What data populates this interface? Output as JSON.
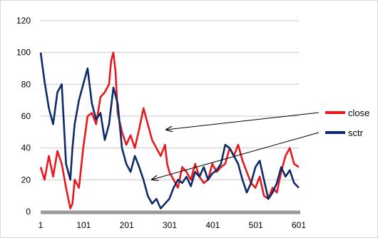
{
  "chart_data": {
    "type": "line",
    "title": "",
    "xlabel": "",
    "ylabel": "",
    "x_ticks": [
      "1",
      "101",
      "201",
      "301",
      "401",
      "501",
      "601"
    ],
    "y_ticks": [
      "0",
      "20",
      "40",
      "60",
      "80",
      "100",
      "120"
    ],
    "xlim": [
      1,
      601
    ],
    "ylim": [
      0,
      120
    ],
    "grid": "horizontal",
    "legend_position": "right",
    "colors": {
      "close": "#e8191e",
      "sctr": "#0f2a6b",
      "grid": "#c8c8c8",
      "axis": "#9a9a9a"
    },
    "series": [
      {
        "name": "close",
        "x": [
          1,
          10,
          20,
          30,
          40,
          50,
          60,
          70,
          75,
          80,
          90,
          100,
          110,
          120,
          130,
          140,
          150,
          160,
          165,
          170,
          175,
          180,
          190,
          200,
          210,
          220,
          230,
          240,
          250,
          260,
          270,
          280,
          290,
          295,
          300,
          310,
          320,
          330,
          340,
          350,
          360,
          370,
          380,
          390,
          400,
          410,
          420,
          430,
          440,
          450,
          460,
          470,
          480,
          490,
          500,
          510,
          520,
          530,
          540,
          550,
          560,
          570,
          580,
          590,
          601
        ],
        "values": [
          28,
          20,
          35,
          22,
          38,
          30,
          15,
          2,
          5,
          20,
          15,
          40,
          60,
          62,
          55,
          72,
          75,
          80,
          95,
          100,
          88,
          62,
          50,
          42,
          48,
          40,
          52,
          65,
          55,
          45,
          40,
          35,
          42,
          30,
          25,
          20,
          15,
          28,
          25,
          20,
          30,
          22,
          18,
          20,
          30,
          25,
          28,
          30,
          40,
          35,
          42,
          32,
          25,
          18,
          15,
          22,
          10,
          8,
          15,
          12,
          25,
          35,
          40,
          30,
          28
        ]
      },
      {
        "name": "sctr",
        "x": [
          1,
          10,
          20,
          30,
          40,
          50,
          60,
          70,
          75,
          80,
          90,
          100,
          110,
          120,
          130,
          140,
          150,
          160,
          170,
          180,
          190,
          200,
          210,
          220,
          230,
          240,
          250,
          260,
          270,
          280,
          290,
          300,
          310,
          320,
          330,
          340,
          350,
          360,
          370,
          380,
          390,
          400,
          410,
          420,
          430,
          440,
          450,
          460,
          470,
          480,
          490,
          500,
          510,
          520,
          530,
          540,
          550,
          560,
          570,
          580,
          590,
          601
        ],
        "values": [
          100,
          82,
          65,
          55,
          75,
          80,
          30,
          20,
          40,
          55,
          70,
          80,
          90,
          68,
          58,
          62,
          45,
          55,
          78,
          68,
          40,
          30,
          25,
          35,
          28,
          20,
          10,
          5,
          8,
          2,
          5,
          8,
          15,
          20,
          18,
          22,
          16,
          25,
          22,
          28,
          20,
          24,
          26,
          30,
          42,
          40,
          35,
          30,
          20,
          12,
          18,
          28,
          32,
          20,
          8,
          12,
          18,
          28,
          22,
          26,
          18,
          15
        ]
      }
    ]
  }
}
